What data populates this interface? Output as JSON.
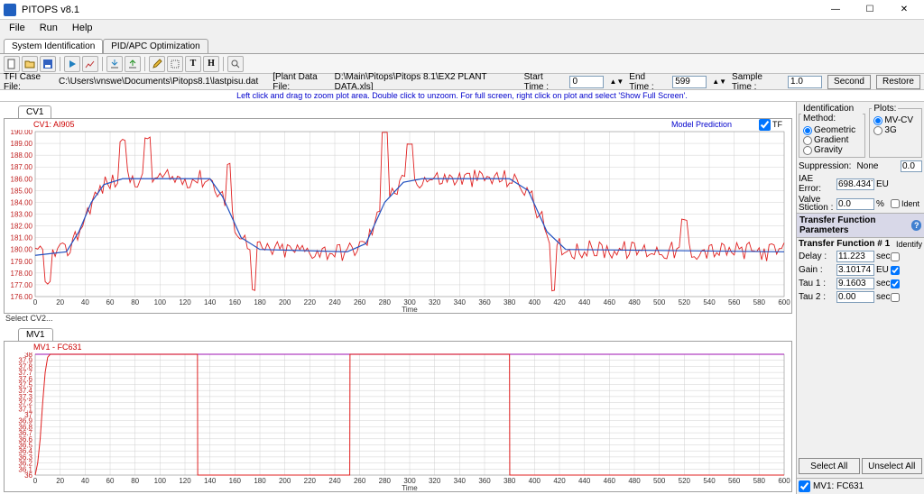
{
  "window": {
    "title": "PITOPS v8.1"
  },
  "menu": {
    "file": "File",
    "run": "Run",
    "help": "Help"
  },
  "tabs": {
    "sysid": "System Identification",
    "pid": "PID/APC Optimization"
  },
  "filerow": {
    "tfi_label": "TFI Case File:",
    "tfi_path": "C:\\Users\\vnswe\\Documents\\Pitops8.1\\lastpisu.dat",
    "plant_label": "[Plant Data File:",
    "plant_path": "D:\\Main\\Pitops\\Pitops 8.1\\EX2 PLANT DATA.xls]",
    "start_label": "Start Time :",
    "start_value": "0",
    "end_label": "End Time :",
    "end_value": "599",
    "sample_label": "Sample Time :",
    "sample_value": "1.0",
    "sample_unit": "Second",
    "restore": "Restore"
  },
  "info_strip": "Left click and drag to zoom plot area. Double click to unzoom. For full screen, right click on plot and select 'Show Full Screen'.",
  "cv_chart": {
    "tab": "CV1",
    "tag": "CV1: AI905",
    "mpred": "Model Prediction",
    "tf_label": "TF",
    "axis_label": "Time",
    "y_ticks": [
      176,
      177,
      178,
      179,
      180,
      181,
      182,
      183,
      184,
      185,
      186,
      187,
      188,
      189,
      190
    ],
    "y_labels": [
      "176.00",
      "177.00",
      "178.00",
      "179.00",
      "180.00",
      "181.00",
      "182.00",
      "183.00",
      "184.00",
      "185.00",
      "186.00",
      "187.00",
      "188.00",
      "189.00",
      "190.00"
    ],
    "x_ticks": [
      0,
      20,
      40,
      60,
      80,
      100,
      120,
      140,
      160,
      180,
      200,
      220,
      240,
      260,
      280,
      300,
      320,
      340,
      360,
      380,
      400,
      420,
      440,
      460,
      480,
      500,
      520,
      540,
      560,
      580,
      600
    ],
    "xmin": 0,
    "xmax": 600,
    "ymin": 176,
    "ymax": 190,
    "model_color": "#2050c0",
    "data_color": "#e02020",
    "grid_color": "#d0d0d0",
    "bg": "#ffffff",
    "model_series": [
      {
        "x": 0,
        "y": 179.5
      },
      {
        "x": 25,
        "y": 179.8
      },
      {
        "x": 35,
        "y": 181.5
      },
      {
        "x": 45,
        "y": 184.0
      },
      {
        "x": 55,
        "y": 185.5
      },
      {
        "x": 70,
        "y": 186.0
      },
      {
        "x": 120,
        "y": 186.0
      },
      {
        "x": 140,
        "y": 186.0
      },
      {
        "x": 150,
        "y": 184.5
      },
      {
        "x": 165,
        "y": 181.0
      },
      {
        "x": 180,
        "y": 180.0
      },
      {
        "x": 250,
        "y": 179.8
      },
      {
        "x": 265,
        "y": 180.5
      },
      {
        "x": 280,
        "y": 184.0
      },
      {
        "x": 295,
        "y": 185.7
      },
      {
        "x": 310,
        "y": 186.0
      },
      {
        "x": 380,
        "y": 186.0
      },
      {
        "x": 395,
        "y": 185.0
      },
      {
        "x": 410,
        "y": 181.5
      },
      {
        "x": 425,
        "y": 180.0
      },
      {
        "x": 600,
        "y": 179.8
      }
    ],
    "data_series_env": {
      "base_on_model": true,
      "noise_amp": 0.8,
      "spikes": [
        {
          "x": 10,
          "y": 177.2
        },
        {
          "x": 70,
          "y": 189.2
        },
        {
          "x": 90,
          "y": 189.5
        },
        {
          "x": 155,
          "y": 187.2
        },
        {
          "x": 175,
          "y": 176.5
        },
        {
          "x": 280,
          "y": 190.0
        },
        {
          "x": 300,
          "y": 189.0
        },
        {
          "x": 415,
          "y": 176.4
        },
        {
          "x": 520,
          "y": 182.5
        }
      ]
    },
    "select_label": "Select CV2..."
  },
  "mv_chart": {
    "tab": "MV1",
    "tag": "MV1 - FC631",
    "axis_label": "Time",
    "y_ticks": [
      36.0,
      36.1,
      36.2,
      36.3,
      36.4,
      36.5,
      36.6,
      36.7,
      36.8,
      36.9,
      37.0,
      37.1,
      37.2,
      37.3,
      37.4,
      37.5,
      37.6,
      37.7,
      37.8,
      37.9,
      38.0
    ],
    "y_labels": [
      "36",
      "36.1",
      "36.2",
      "36.3",
      "36.4",
      "36.5",
      "36.6",
      "36.7",
      "36.8",
      "36.9",
      "37",
      "37.1",
      "37.2",
      "37.3",
      "37.4",
      "37.5",
      "37.6",
      "37.7",
      "37.8",
      "37.9",
      "38"
    ],
    "x_ticks": [
      0,
      20,
      40,
      60,
      80,
      100,
      120,
      140,
      160,
      180,
      200,
      220,
      240,
      260,
      280,
      300,
      320,
      340,
      360,
      380,
      400,
      420,
      440,
      460,
      480,
      500,
      520,
      540,
      560,
      580,
      600
    ],
    "xmin": 0,
    "xmax": 600,
    "ymin": 36.0,
    "ymax": 38.0,
    "data_color": "#e02020",
    "top_color": "#b040c0",
    "grid_color": "#d0d0d0",
    "step_series": [
      {
        "x": 0,
        "y": 36.0
      },
      {
        "x": 2,
        "y": 36.2
      },
      {
        "x": 4,
        "y": 36.6
      },
      {
        "x": 6,
        "y": 37.2
      },
      {
        "x": 8,
        "y": 37.7
      },
      {
        "x": 10,
        "y": 37.95
      },
      {
        "x": 12,
        "y": 38.0
      },
      {
        "x": 130,
        "y": 38.0
      },
      {
        "x": 130.2,
        "y": 36.0
      },
      {
        "x": 252,
        "y": 36.0
      },
      {
        "x": 252.2,
        "y": 38.0
      },
      {
        "x": 380,
        "y": 38.0
      },
      {
        "x": 380.2,
        "y": 36.0
      },
      {
        "x": 600,
        "y": 36.0
      }
    ],
    "top_line": 38.0
  },
  "right": {
    "ident_method": {
      "title": "Identification Method:",
      "opt1": "Geometric",
      "opt2": "Gradient",
      "opt3": "Gravity"
    },
    "plots": {
      "title": "Plots:",
      "opt1": "MV-CV",
      "opt2": "3G"
    },
    "supp_label": "Suppression:",
    "supp_value": "None",
    "supp_num": "0.0",
    "iae_label": "IAE Error:",
    "iae_value": "698.4347",
    "iae_unit": "EU",
    "stiction_label": "Valve Stiction :",
    "stiction_value": "0.0",
    "stiction_unit": "%",
    "ident_label": "Ident",
    "tfp_title": "Transfer Function Parameters",
    "tf1_title": "Transfer Function # 1",
    "identify_label": "Identify",
    "delay_label": "Delay :",
    "delay_value": "11.223",
    "delay_unit": "sec",
    "gain_label": "Gain :",
    "gain_value": "3.10174",
    "gain_unit": "EU",
    "tau1_label": "Tau 1 :",
    "tau1_value": "9.1603",
    "tau1_unit": "sec",
    "tau2_label": "Tau 2 :",
    "tau2_value": "0.00",
    "tau2_unit": "sec",
    "select_all": "Select All",
    "unselect_all": "Unselect All",
    "mv_check": "MV1: FC631"
  }
}
